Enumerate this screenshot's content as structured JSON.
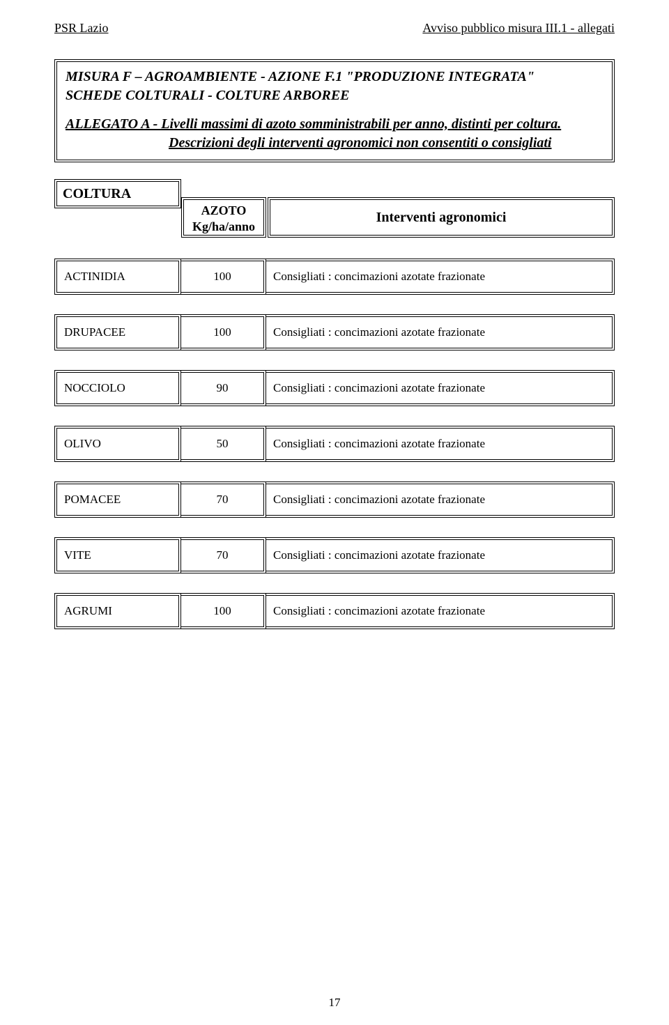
{
  "header": {
    "left": "PSR  Lazio",
    "right": "Avviso pubblico misura III.1 - allegati"
  },
  "titleBox": {
    "line1": "MISURA F – AGROAMBIENTE - AZIONE F.1 \"PRODUZIONE INTEGRATA\"",
    "line2": "SCHEDE COLTURALI   -  COLTURE ARBOREE",
    "sub1": "ALLEGATO  A  - Livelli massimi di azoto somministrabili per anno, distinti per coltura.",
    "sub2": "Descrizioni degli interventi agronomici non consentiti o consigliati"
  },
  "tableHeader": {
    "coltura": "COLTURA",
    "azoto_l1": "AZOTO",
    "azoto_l2": "Kg/ha/anno",
    "interventi": "Interventi agronomici"
  },
  "rows": [
    {
      "name": "ACTINIDIA",
      "value": "100",
      "desc": "Consigliati : concimazioni azotate frazionate"
    },
    {
      "name": "DRUPACEE",
      "value": "100",
      "desc": "Consigliati : concimazioni azotate frazionate"
    },
    {
      "name": "NOCCIOLO",
      "value": "90",
      "desc": "Consigliati : concimazioni azotate frazionate"
    },
    {
      "name": "OLIVO",
      "value": "50",
      "desc": "Consigliati : concimazioni azotate frazionate"
    },
    {
      "name": "POMACEE",
      "value": "70",
      "desc": "Consigliati : concimazioni azotate frazionate"
    },
    {
      "name": "VITE",
      "value": "70",
      "desc": "Consigliati : concimazioni azotate frazionate"
    },
    {
      "name": "AGRUMI",
      "value": "100",
      "desc": "Consigliati : concimazioni azotate frazionate"
    }
  ],
  "pageNumber": "17"
}
